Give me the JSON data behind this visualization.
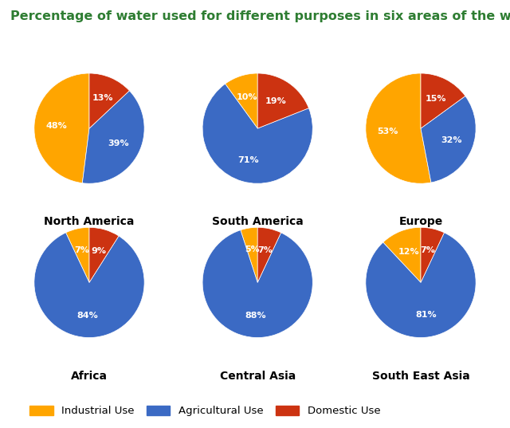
{
  "title": "Percentage of water used for different purposes in six areas of the world.",
  "title_color": "#2e7d32",
  "background_color": "#ffffff",
  "colors": {
    "Industrial Use": "#FFA500",
    "Agricultural Use": "#3B6AC4",
    "Domestic Use": "#CC3311"
  },
  "regions": [
    {
      "name": "North America",
      "values": [
        48,
        39,
        13
      ],
      "labels": [
        "48%",
        "39%",
        "13%"
      ]
    },
    {
      "name": "South America",
      "values": [
        10,
        71,
        19
      ],
      "labels": [
        "10%",
        "71%",
        "19%"
      ]
    },
    {
      "name": "Europe",
      "values": [
        53,
        32,
        15
      ],
      "labels": [
        "53%",
        "32%",
        "15%"
      ]
    },
    {
      "name": "Africa",
      "values": [
        7,
        84,
        9
      ],
      "labels": [
        "7%",
        "84%",
        "9%"
      ]
    },
    {
      "name": "Central Asia",
      "values": [
        5,
        88,
        7
      ],
      "labels": [
        "5%",
        "88%",
        "7%"
      ]
    },
    {
      "name": "South East Asia",
      "values": [
        12,
        81,
        7
      ],
      "labels": [
        "12%",
        "81%",
        "7%"
      ]
    }
  ],
  "legend_labels": [
    "Industrial Use",
    "Agricultural Use",
    "Domestic Use"
  ],
  "label_fontsize": 8,
  "region_name_fontsize": 10,
  "title_fontsize": 11.5
}
